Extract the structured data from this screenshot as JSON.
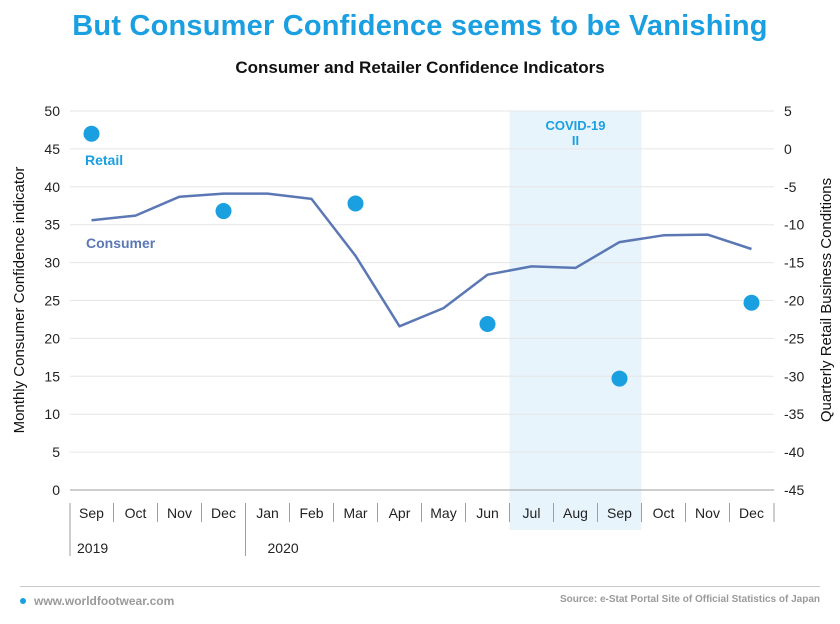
{
  "header": {
    "headline": "But Consumer Confidence seems to be Vanishing",
    "accent_color": "#1a9fe0"
  },
  "footer": {
    "site": "www.worldfootwear.com",
    "source": "Source: e-Stat Portal Site of Official Statistics of Japan"
  },
  "chart_data": {
    "type": "line",
    "title": "Consumer and Retailer Confidence Indicators",
    "x": [
      "Sep",
      "Oct",
      "Nov",
      "Dec",
      "Jan",
      "Feb",
      "Mar",
      "Apr",
      "May",
      "Jun",
      "Jul",
      "Aug",
      "Sep",
      "Oct",
      "Nov",
      "Dec"
    ],
    "year_labels": [
      {
        "label": "2019",
        "start": "Sep"
      },
      {
        "label": "2020",
        "start": "Jan"
      }
    ],
    "ylabel": "Monthly Consumer Confidence indicator",
    "y2label": "Quarterly Retail Business Conditions",
    "ylim": [
      0,
      50
    ],
    "y2lim": [
      -45,
      5
    ],
    "yticks": [
      0,
      5,
      10,
      15,
      20,
      25,
      30,
      35,
      40,
      45,
      50
    ],
    "y2ticks": [
      -45,
      -40,
      -35,
      -30,
      -25,
      -20,
      -15,
      -10,
      -5,
      0,
      5
    ],
    "grid": true,
    "series": [
      {
        "name": "Consumer",
        "kind": "line",
        "axis": "left",
        "color": "#5b78b5",
        "values": [
          35.6,
          36.2,
          38.7,
          39.1,
          39.1,
          38.4,
          30.9,
          21.6,
          24.0,
          28.4,
          29.5,
          29.3,
          32.7,
          33.6,
          33.7,
          31.8
        ]
      },
      {
        "name": "Retail",
        "kind": "scatter",
        "axis": "right",
        "color": "#1a9fe0",
        "points": [
          {
            "x": "Sep 2019",
            "y": 2.0
          },
          {
            "x": "Dec 2019",
            "y": -8.2
          },
          {
            "x": "Mar 2020",
            "y": -7.2
          },
          {
            "x": "Jun 2020",
            "y": -23.1
          },
          {
            "x": "Sep 2020",
            "y": -30.3
          },
          {
            "x": "Dec 2020",
            "y": -20.3
          }
        ]
      }
    ],
    "annotations": [
      {
        "text_lines": [
          "COVID-19",
          "II"
        ],
        "region": [
          "Jul 2020",
          "Sep 2020"
        ],
        "fill": "#e8f4fc",
        "text_color": "#1a9fe0"
      }
    ]
  }
}
